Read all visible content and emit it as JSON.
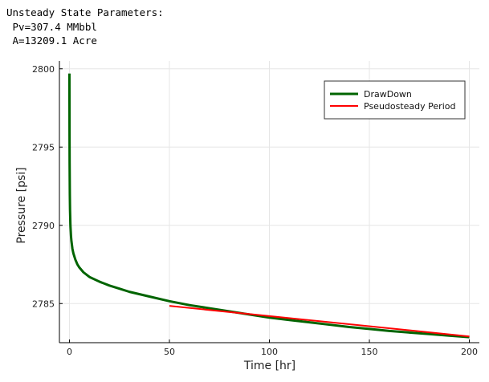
{
  "annotation": {
    "lines": [
      "Unsteady State Parameters:",
      " Pv=307.4 MMbbl",
      " A=13209.1 Acre"
    ]
  },
  "chart_data": {
    "type": "line",
    "title": "",
    "xlabel": "Time [hr]",
    "ylabel": "Pressure [psi]",
    "xlim": [
      -5,
      205
    ],
    "ylim": [
      2782.5,
      2800.5
    ],
    "xticks": [
      0,
      50,
      100,
      150,
      200
    ],
    "yticks": [
      2785,
      2790,
      2795,
      2800
    ],
    "grid": true,
    "legend_position": "top-right",
    "series": [
      {
        "name": "DrawDown",
        "color": "#006400",
        "x": [
          0,
          0.05,
          0.1,
          0.2,
          0.3,
          0.5,
          0.8,
          1,
          1.5,
          2,
          3,
          4,
          5,
          7,
          10,
          15,
          20,
          25,
          30,
          40,
          50,
          60,
          70,
          80,
          90,
          100,
          110,
          120,
          130,
          140,
          150,
          160,
          170,
          180,
          190,
          200
        ],
        "y": [
          2799.7,
          2796.0,
          2794.0,
          2792.0,
          2791.0,
          2790.0,
          2789.3,
          2789.0,
          2788.5,
          2788.2,
          2787.8,
          2787.5,
          2787.3,
          2787.0,
          2786.7,
          2786.4,
          2786.15,
          2785.95,
          2785.75,
          2785.45,
          2785.15,
          2784.9,
          2784.7,
          2784.5,
          2784.3,
          2784.1,
          2783.95,
          2783.8,
          2783.65,
          2783.5,
          2783.38,
          2783.25,
          2783.15,
          2783.05,
          2782.95,
          2782.85
        ]
      },
      {
        "name": "Pseudosteady Period",
        "color": "#ff0000",
        "x": [
          50,
          200
        ],
        "y": [
          2784.85,
          2782.9
        ]
      }
    ]
  }
}
